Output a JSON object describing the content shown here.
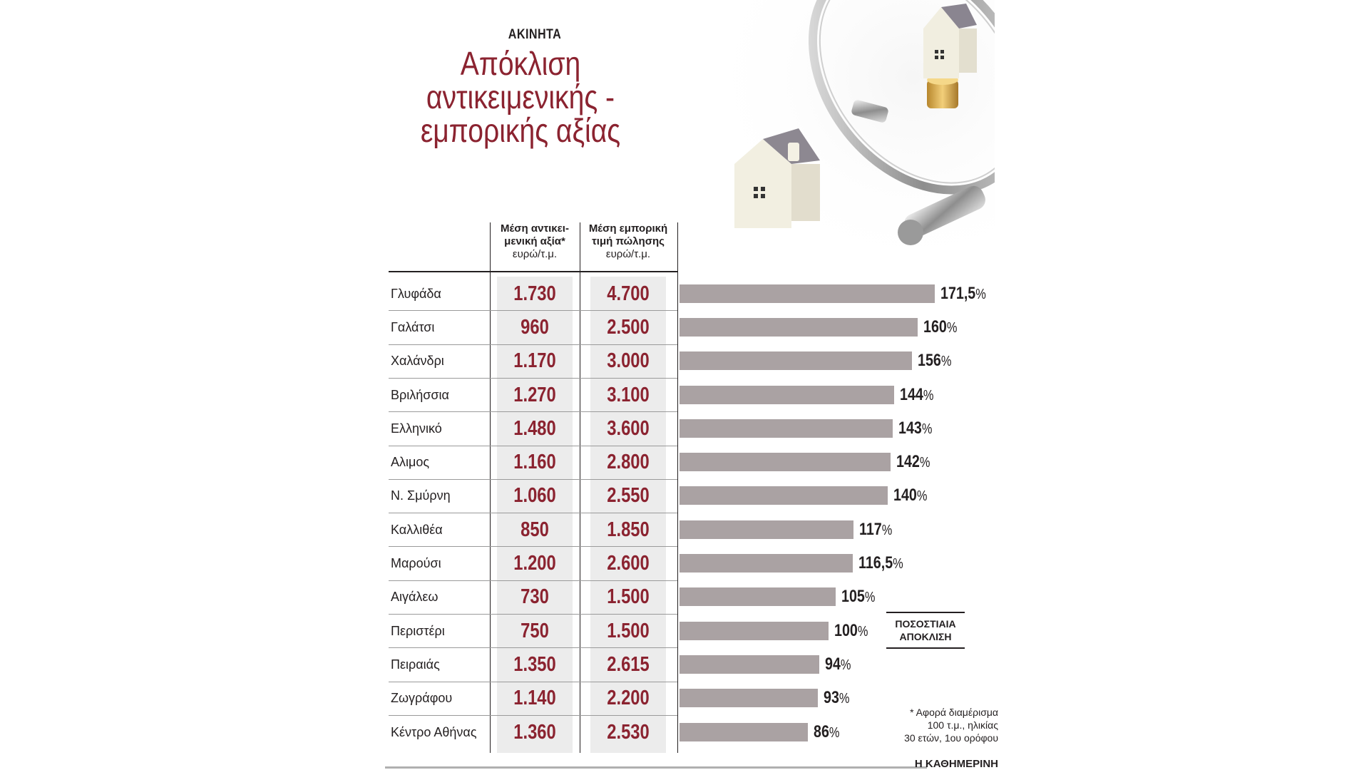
{
  "header": {
    "kicker": "ΑΚΙΝΗΤΑ",
    "title_lines": [
      "Απόκλιση",
      "αντικειμενικής -",
      "εμπορικής αξίας"
    ]
  },
  "columns": {
    "objective": {
      "line1": "Μέση αντικει-",
      "line2": "μενική αξία*",
      "unit": "ευρώ/τ.μ."
    },
    "market": {
      "line1": "Μέση εμπορική",
      "line2": "τιμή πώλησης",
      "unit": "ευρώ/τ.μ."
    }
  },
  "legend": {
    "line1": "ΠΟΣΟΣΤΙΑΙΑ",
    "line2": "ΑΠΟΚΛΙΣΗ"
  },
  "footnote": {
    "line1": "* Αφορά διαμέρισμα",
    "line2": "100 τ.μ., ηλικίας",
    "line3": "30 ετών, 1ου ορόφου"
  },
  "source": "Η ΚΑΘΗΜΕΡΙΝΗ",
  "colors": {
    "accent": "#8b2330",
    "bar": "#aaa2a3",
    "shade": "#ececec",
    "text": "#231f20"
  },
  "photo_icons": [
    "house-icon",
    "magnifying-glass-icon",
    "coins-icon"
  ],
  "chart_data": {
    "type": "bar",
    "orientation": "horizontal",
    "categories": [
      "Γλυφάδα",
      "Γαλάτσι",
      "Χαλάνδρι",
      "Βριλήσσια",
      "Ελληνικό",
      "Αλιμος",
      "Ν. Σμύρνη",
      "Καλλιθέα",
      "Μαρούσι",
      "Αιγάλεω",
      "Περιστέρι",
      "Πειραιάς",
      "Ζωγράφου",
      "Κέντρο Αθήνας"
    ],
    "objective_labels": [
      "1.730",
      "960",
      "1.170",
      "1.270",
      "1.480",
      "1.160",
      "1.060",
      "850",
      "1.200",
      "730",
      "750",
      "1.350",
      "1.140",
      "1.360"
    ],
    "market_labels": [
      "4.700",
      "2.500",
      "3.000",
      "3.100",
      "3.600",
      "2.800",
      "2.550",
      "1.850",
      "2.600",
      "1.500",
      "1.500",
      "2.615",
      "2.200",
      "2.530"
    ],
    "series": [
      {
        "name": "Μέση αντικειμενική αξία",
        "values": [
          1730,
          960,
          1170,
          1270,
          1480,
          1160,
          1060,
          850,
          1200,
          730,
          750,
          1350,
          1140,
          1360
        ]
      },
      {
        "name": "Μέση εμπορική τιμή πώλησης",
        "values": [
          4700,
          2500,
          3000,
          3100,
          3600,
          2800,
          2550,
          1850,
          2600,
          1500,
          1500,
          2615,
          2200,
          2530
        ]
      },
      {
        "name": "ΠΟΣΟΣΤΙΑΙΑ ΑΠΟΚΛΙΣΗ",
        "values": [
          171.5,
          160,
          156,
          144,
          143,
          142,
          140,
          117,
          116.5,
          105,
          100,
          94,
          93,
          86
        ]
      }
    ],
    "pct_labels": [
      "171,5",
      "160",
      "156",
      "144",
      "143",
      "142",
      "140",
      "117",
      "116,5",
      "105",
      "100",
      "94",
      "93",
      "86"
    ],
    "pct_suffix": "%",
    "xlim": [
      0,
      171.5
    ],
    "grid": false
  }
}
